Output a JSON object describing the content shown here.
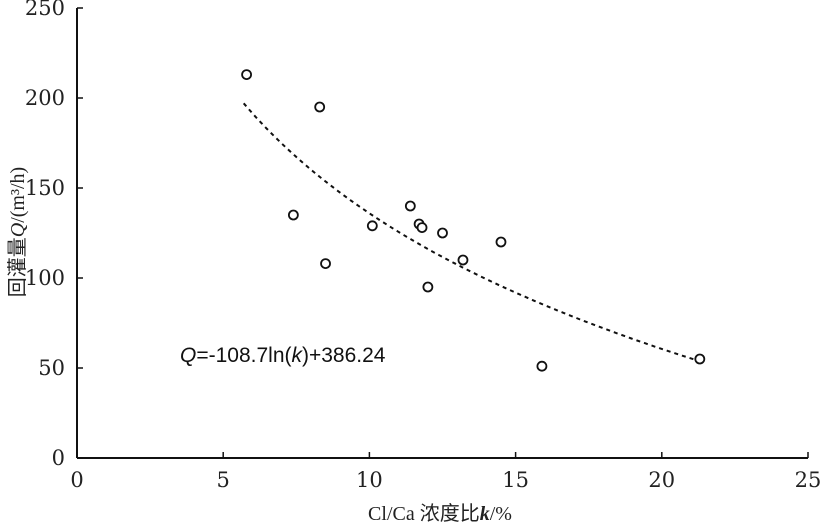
{
  "chart_data": {
    "type": "scatter",
    "xlabel": "Cl/Ca 浓度比k/%",
    "ylabel": "回灌量Q/(m³/h)",
    "xlim": [
      0,
      25
    ],
    "ylim": [
      0,
      250
    ],
    "xticks": [
      0,
      5,
      10,
      15,
      20,
      25
    ],
    "yticks": [
      0,
      50,
      100,
      150,
      200,
      250
    ],
    "grid": false,
    "points": [
      {
        "x": 5.8,
        "y": 213
      },
      {
        "x": 7.4,
        "y": 135
      },
      {
        "x": 8.3,
        "y": 195
      },
      {
        "x": 8.5,
        "y": 108
      },
      {
        "x": 10.1,
        "y": 129
      },
      {
        "x": 11.4,
        "y": 140
      },
      {
        "x": 11.7,
        "y": 130
      },
      {
        "x": 11.8,
        "y": 128
      },
      {
        "x": 12.0,
        "y": 95
      },
      {
        "x": 12.5,
        "y": 125
      },
      {
        "x": 13.2,
        "y": 110
      },
      {
        "x": 14.5,
        "y": 120
      },
      {
        "x": 15.9,
        "y": 51
      },
      {
        "x": 21.3,
        "y": 55
      }
    ],
    "fit": {
      "equation": "Q=-108.7ln(k)+386.24",
      "a": -108.7,
      "b": 386.24,
      "x_range": [
        5.7,
        21.3
      ],
      "style": "dashed"
    }
  }
}
